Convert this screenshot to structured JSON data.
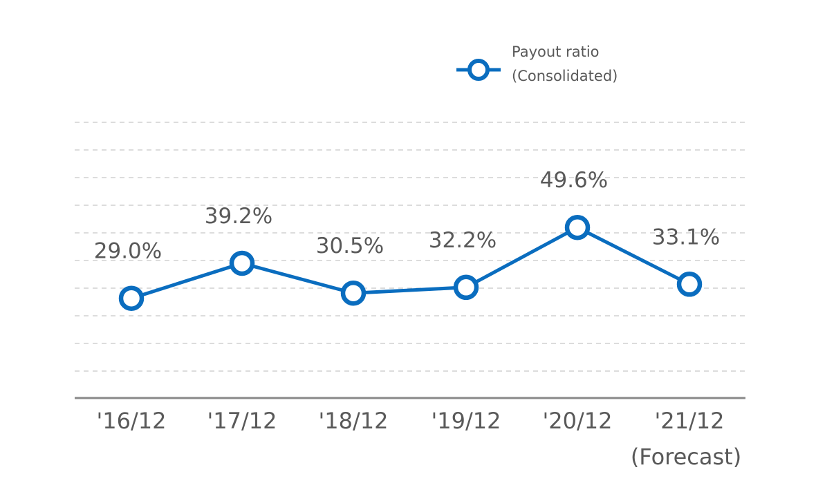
{
  "colors": {
    "series": "#0a6dbf",
    "grid": "#c8c8c8",
    "axis": "#888888",
    "text": "#595959"
  },
  "chart_data": {
    "type": "line",
    "title": "",
    "xlabel": "",
    "ylabel": "",
    "categories": [
      "'16/12",
      "'17/12",
      "'18/12",
      "'19/12",
      "'20/12",
      "'21/12"
    ],
    "category_notes": [
      "",
      "",
      "",
      "",
      "",
      "(Forecast)"
    ],
    "ylim": [
      0,
      82
    ],
    "grid": true,
    "legend_placement": "top-right",
    "series": [
      {
        "name": "Payout ratio (Consolidated)",
        "legend_lines": [
          "Payout ratio",
          "(Consolidated)"
        ],
        "values": [
          29.0,
          39.2,
          30.5,
          32.2,
          49.6,
          33.1
        ],
        "value_labels": [
          "29.0%",
          "39.2%",
          "30.5%",
          "32.2%",
          "49.6%",
          "33.1%"
        ]
      }
    ]
  }
}
